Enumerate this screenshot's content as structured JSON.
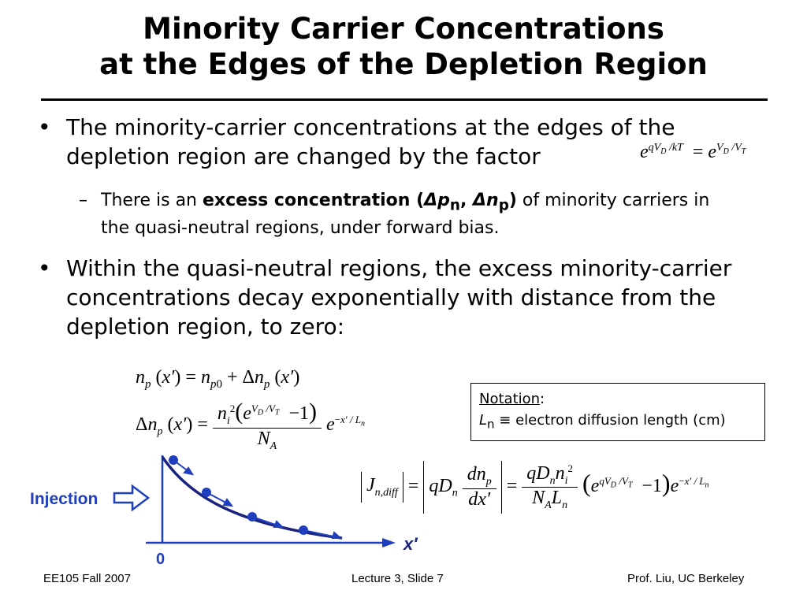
{
  "title": {
    "line1": "Minority Carrier Concentrations",
    "line2": "at the Edges of the Depletion Region"
  },
  "bullets": {
    "b1_text": "The minority-carrier concentrations at the edges of the depletion region are changed by the factor",
    "sub_pre": "There is an ",
    "sub_bold": "excess concentration (",
    "sub_delta_p": "Δp",
    "sub_sub_n": "n",
    "sub_comma": ", ",
    "sub_delta_n": "Δn",
    "sub_sub_p": "p",
    "sub_close": ")",
    "sub_post": " of minority carriers in the quasi-neutral regions, under forward bias.",
    "b2_text": "Within the quasi-neutral regions, the excess minority-carrier concentrations decay exponentially with distance from the depletion region, to zero:"
  },
  "notation": {
    "head": "Notation",
    "colon": ":",
    "symbol": "L",
    "symbol_sub": "n",
    "equiv": " ≡ electron diffusion length (cm)"
  },
  "diagram": {
    "injection_label": "Injection",
    "origin_label": "0",
    "axis_label": "x′",
    "colors": {
      "blue": "#1f3fbf",
      "navy": "#1a237e"
    }
  },
  "footer": {
    "left": "EE105 Fall 2007",
    "center": "Lecture 3, Slide 7",
    "right": "Prof. Liu, UC Berkeley"
  }
}
